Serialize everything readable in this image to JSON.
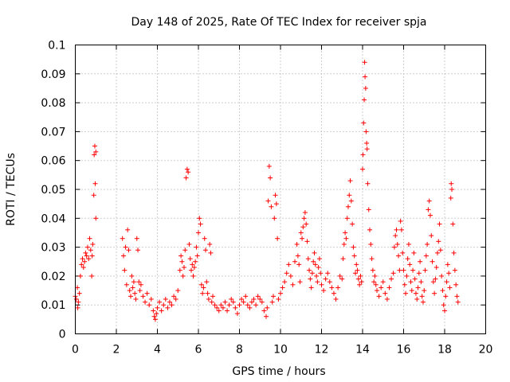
{
  "chart_data": {
    "type": "scatter",
    "title": "Day 148 of 2025, Rate Of TEC Index for receiver spja",
    "xlabel": "GPS time / hours",
    "ylabel": "ROTI / TECUs",
    "xlim": [
      0,
      20
    ],
    "ylim": [
      0,
      0.1
    ],
    "xticks": [
      0,
      2,
      4,
      6,
      8,
      10,
      12,
      14,
      16,
      18,
      20
    ],
    "yticks": [
      0,
      0.01,
      0.02,
      0.03,
      0.04,
      0.05,
      0.06,
      0.07,
      0.08,
      0.09,
      0.1
    ],
    "xtick_labels": [
      "0",
      "2",
      "4",
      "6",
      "8",
      "10",
      "12",
      "14",
      "16",
      "18",
      "20"
    ],
    "ytick_labels": [
      "0",
      "0.01",
      "0.02",
      "0.03",
      "0.04",
      "0.05",
      "0.06",
      "0.07",
      "0.08",
      "0.09",
      "0.1"
    ],
    "grid": true,
    "marker": "+",
    "series_color": "#ff0000",
    "series": [
      {
        "name": "ROTI",
        "points": [
          [
            0.0,
            0.013
          ],
          [
            0.05,
            0.012
          ],
          [
            0.1,
            0.016
          ],
          [
            0.12,
            0.009
          ],
          [
            0.15,
            0.011
          ],
          [
            0.2,
            0.014
          ],
          [
            0.25,
            0.02
          ],
          [
            0.3,
            0.024
          ],
          [
            0.35,
            0.026
          ],
          [
            0.4,
            0.023
          ],
          [
            0.45,
            0.025
          ],
          [
            0.5,
            0.028
          ],
          [
            0.55,
            0.027
          ],
          [
            0.6,
            0.03
          ],
          [
            0.65,
            0.026
          ],
          [
            0.7,
            0.033
          ],
          [
            0.75,
            0.029
          ],
          [
            0.8,
            0.02
          ],
          [
            0.82,
            0.027
          ],
          [
            0.85,
            0.031
          ],
          [
            0.9,
            0.048
          ],
          [
            0.92,
            0.062
          ],
          [
            0.95,
            0.065
          ],
          [
            0.97,
            0.052
          ],
          [
            1.0,
            0.04
          ],
          [
            1.0,
            0.063
          ],
          [
            2.3,
            0.033
          ],
          [
            2.35,
            0.027
          ],
          [
            2.4,
            0.022
          ],
          [
            2.45,
            0.03
          ],
          [
            2.5,
            0.017
          ],
          [
            2.55,
            0.036
          ],
          [
            2.6,
            0.029
          ],
          [
            2.65,
            0.015
          ],
          [
            2.7,
            0.013
          ],
          [
            2.75,
            0.02
          ],
          [
            2.8,
            0.016
          ],
          [
            2.85,
            0.018
          ],
          [
            2.9,
            0.014
          ],
          [
            2.95,
            0.012
          ],
          [
            3.0,
            0.033
          ],
          [
            3.05,
            0.029
          ],
          [
            3.1,
            0.018
          ],
          [
            3.15,
            0.015
          ],
          [
            3.2,
            0.017
          ],
          [
            3.3,
            0.013
          ],
          [
            3.4,
            0.011
          ],
          [
            3.5,
            0.014
          ],
          [
            3.6,
            0.01
          ],
          [
            3.7,
            0.012
          ],
          [
            3.8,
            0.008
          ],
          [
            3.85,
            0.006
          ],
          [
            3.9,
            0.005
          ],
          [
            3.95,
            0.007
          ],
          [
            4.0,
            0.009
          ],
          [
            4.1,
            0.011
          ],
          [
            4.2,
            0.008
          ],
          [
            4.3,
            0.01
          ],
          [
            4.4,
            0.012
          ],
          [
            4.5,
            0.009
          ],
          [
            4.6,
            0.011
          ],
          [
            4.7,
            0.01
          ],
          [
            4.8,
            0.013
          ],
          [
            4.9,
            0.012
          ],
          [
            5.0,
            0.015
          ],
          [
            5.1,
            0.022
          ],
          [
            5.15,
            0.027
          ],
          [
            5.2,
            0.025
          ],
          [
            5.25,
            0.02
          ],
          [
            5.3,
            0.023
          ],
          [
            5.35,
            0.029
          ],
          [
            5.4,
            0.054
          ],
          [
            5.45,
            0.057
          ],
          [
            5.5,
            0.056
          ],
          [
            5.55,
            0.031
          ],
          [
            5.6,
            0.026
          ],
          [
            5.65,
            0.022
          ],
          [
            5.7,
            0.024
          ],
          [
            5.75,
            0.02
          ],
          [
            5.8,
            0.023
          ],
          [
            5.85,
            0.025
          ],
          [
            5.9,
            0.03
          ],
          [
            5.95,
            0.027
          ],
          [
            6.0,
            0.035
          ],
          [
            6.05,
            0.04
          ],
          [
            6.1,
            0.038
          ],
          [
            6.15,
            0.017
          ],
          [
            6.2,
            0.014
          ],
          [
            6.25,
            0.016
          ],
          [
            6.3,
            0.033
          ],
          [
            6.35,
            0.029
          ],
          [
            6.4,
            0.018
          ],
          [
            6.45,
            0.014
          ],
          [
            6.5,
            0.012
          ],
          [
            6.55,
            0.031
          ],
          [
            6.6,
            0.028
          ],
          [
            6.65,
            0.011
          ],
          [
            6.7,
            0.013
          ],
          [
            6.8,
            0.01
          ],
          [
            6.9,
            0.009
          ],
          [
            7.0,
            0.008
          ],
          [
            7.1,
            0.01
          ],
          [
            7.2,
            0.009
          ],
          [
            7.3,
            0.011
          ],
          [
            7.4,
            0.008
          ],
          [
            7.5,
            0.01
          ],
          [
            7.6,
            0.012
          ],
          [
            7.7,
            0.011
          ],
          [
            7.8,
            0.009
          ],
          [
            7.9,
            0.007
          ],
          [
            8.0,
            0.01
          ],
          [
            8.1,
            0.012
          ],
          [
            8.2,
            0.011
          ],
          [
            8.3,
            0.013
          ],
          [
            8.4,
            0.01
          ],
          [
            8.5,
            0.009
          ],
          [
            8.6,
            0.011
          ],
          [
            8.7,
            0.012
          ],
          [
            8.8,
            0.01
          ],
          [
            8.9,
            0.013
          ],
          [
            9.0,
            0.012
          ],
          [
            9.1,
            0.011
          ],
          [
            9.2,
            0.008
          ],
          [
            9.3,
            0.006
          ],
          [
            9.35,
            0.009
          ],
          [
            9.4,
            0.046
          ],
          [
            9.45,
            0.058
          ],
          [
            9.5,
            0.054
          ],
          [
            9.55,
            0.044
          ],
          [
            9.6,
            0.011
          ],
          [
            9.65,
            0.013
          ],
          [
            9.7,
            0.04
          ],
          [
            9.75,
            0.048
          ],
          [
            9.8,
            0.045
          ],
          [
            9.85,
            0.033
          ],
          [
            9.9,
            0.012
          ],
          [
            10.0,
            0.014
          ],
          [
            10.1,
            0.016
          ],
          [
            10.2,
            0.018
          ],
          [
            10.3,
            0.021
          ],
          [
            10.4,
            0.024
          ],
          [
            10.5,
            0.02
          ],
          [
            10.6,
            0.017
          ],
          [
            10.7,
            0.025
          ],
          [
            10.8,
            0.031
          ],
          [
            10.85,
            0.027
          ],
          [
            10.9,
            0.024
          ],
          [
            10.95,
            0.018
          ],
          [
            11.0,
            0.035
          ],
          [
            11.05,
            0.033
          ],
          [
            11.1,
            0.037
          ],
          [
            11.15,
            0.04
          ],
          [
            11.2,
            0.042
          ],
          [
            11.25,
            0.038
          ],
          [
            11.3,
            0.032
          ],
          [
            11.35,
            0.026
          ],
          [
            11.4,
            0.022
          ],
          [
            11.45,
            0.019
          ],
          [
            11.5,
            0.016
          ],
          [
            11.55,
            0.021
          ],
          [
            11.6,
            0.025
          ],
          [
            11.65,
            0.028
          ],
          [
            11.7,
            0.024
          ],
          [
            11.75,
            0.02
          ],
          [
            11.8,
            0.018
          ],
          [
            11.85,
            0.023
          ],
          [
            11.9,
            0.026
          ],
          [
            11.95,
            0.021
          ],
          [
            12.0,
            0.017
          ],
          [
            12.1,
            0.015
          ],
          [
            12.2,
            0.019
          ],
          [
            12.3,
            0.021
          ],
          [
            12.4,
            0.018
          ],
          [
            12.5,
            0.016
          ],
          [
            12.6,
            0.014
          ],
          [
            12.7,
            0.012
          ],
          [
            12.8,
            0.016
          ],
          [
            12.9,
            0.02
          ],
          [
            13.0,
            0.019
          ],
          [
            13.05,
            0.026
          ],
          [
            13.1,
            0.031
          ],
          [
            13.15,
            0.035
          ],
          [
            13.2,
            0.033
          ],
          [
            13.25,
            0.04
          ],
          [
            13.3,
            0.044
          ],
          [
            13.35,
            0.048
          ],
          [
            13.4,
            0.053
          ],
          [
            13.45,
            0.046
          ],
          [
            13.5,
            0.038
          ],
          [
            13.55,
            0.03
          ],
          [
            13.6,
            0.027
          ],
          [
            13.65,
            0.021
          ],
          [
            13.7,
            0.024
          ],
          [
            13.75,
            0.022
          ],
          [
            13.8,
            0.019
          ],
          [
            13.85,
            0.017
          ],
          [
            13.9,
            0.02
          ],
          [
            13.95,
            0.018
          ],
          [
            14.0,
            0.057
          ],
          [
            14.02,
            0.062
          ],
          [
            14.05,
            0.073
          ],
          [
            14.08,
            0.081
          ],
          [
            14.1,
            0.094
          ],
          [
            14.12,
            0.089
          ],
          [
            14.15,
            0.085
          ],
          [
            14.17,
            0.07
          ],
          [
            14.2,
            0.066
          ],
          [
            14.22,
            0.064
          ],
          [
            14.25,
            0.052
          ],
          [
            14.3,
            0.043
          ],
          [
            14.35,
            0.036
          ],
          [
            14.4,
            0.031
          ],
          [
            14.45,
            0.026
          ],
          [
            14.5,
            0.022
          ],
          [
            14.55,
            0.018
          ],
          [
            14.6,
            0.02
          ],
          [
            14.65,
            0.017
          ],
          [
            14.7,
            0.015
          ],
          [
            14.8,
            0.013
          ],
          [
            14.9,
            0.016
          ],
          [
            15.0,
            0.018
          ],
          [
            15.1,
            0.014
          ],
          [
            15.2,
            0.012
          ],
          [
            15.3,
            0.016
          ],
          [
            15.4,
            0.019
          ],
          [
            15.5,
            0.021
          ],
          [
            15.55,
            0.03
          ],
          [
            15.6,
            0.034
          ],
          [
            15.65,
            0.036
          ],
          [
            15.7,
            0.031
          ],
          [
            15.75,
            0.027
          ],
          [
            15.8,
            0.022
          ],
          [
            15.85,
            0.039
          ],
          [
            15.9,
            0.036
          ],
          [
            15.95,
            0.028
          ],
          [
            16.0,
            0.022
          ],
          [
            16.05,
            0.017
          ],
          [
            16.1,
            0.014
          ],
          [
            16.15,
            0.02
          ],
          [
            16.2,
            0.026
          ],
          [
            16.25,
            0.031
          ],
          [
            16.3,
            0.024
          ],
          [
            16.35,
            0.018
          ],
          [
            16.4,
            0.015
          ],
          [
            16.45,
            0.022
          ],
          [
            16.5,
            0.028
          ],
          [
            16.55,
            0.019
          ],
          [
            16.6,
            0.014
          ],
          [
            16.65,
            0.012
          ],
          [
            16.7,
            0.016
          ],
          [
            16.75,
            0.021
          ],
          [
            16.8,
            0.025
          ],
          [
            16.85,
            0.018
          ],
          [
            16.9,
            0.013
          ],
          [
            16.95,
            0.011
          ],
          [
            17.0,
            0.015
          ],
          [
            17.05,
            0.022
          ],
          [
            17.1,
            0.027
          ],
          [
            17.15,
            0.031
          ],
          [
            17.2,
            0.043
          ],
          [
            17.25,
            0.046
          ],
          [
            17.3,
            0.041
          ],
          [
            17.35,
            0.034
          ],
          [
            17.4,
            0.025
          ],
          [
            17.45,
            0.018
          ],
          [
            17.5,
            0.014
          ],
          [
            17.55,
            0.019
          ],
          [
            17.6,
            0.023
          ],
          [
            17.65,
            0.028
          ],
          [
            17.7,
            0.032
          ],
          [
            17.75,
            0.038
          ],
          [
            17.8,
            0.029
          ],
          [
            17.85,
            0.02
          ],
          [
            17.9,
            0.015
          ],
          [
            17.95,
            0.01
          ],
          [
            18.0,
            0.008
          ],
          [
            18.05,
            0.013
          ],
          [
            18.1,
            0.018
          ],
          [
            18.15,
            0.024
          ],
          [
            18.2,
            0.021
          ],
          [
            18.25,
            0.016
          ],
          [
            18.3,
            0.047
          ],
          [
            18.32,
            0.052
          ],
          [
            18.35,
            0.05
          ],
          [
            18.4,
            0.038
          ],
          [
            18.45,
            0.028
          ],
          [
            18.5,
            0.022
          ],
          [
            18.55,
            0.017
          ],
          [
            18.6,
            0.013
          ],
          [
            18.65,
            0.011
          ]
        ]
      }
    ]
  }
}
